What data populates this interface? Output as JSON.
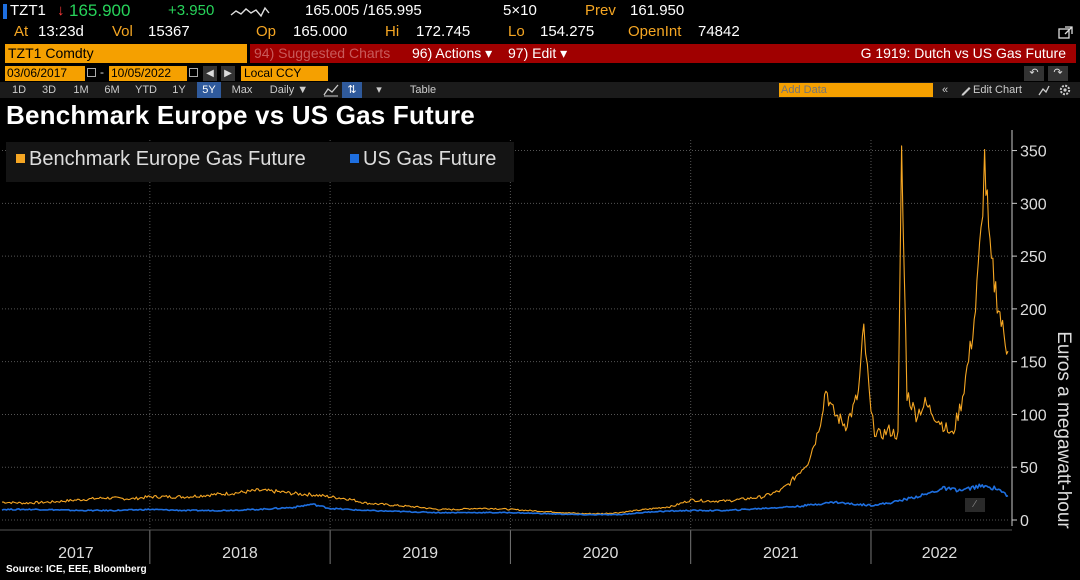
{
  "header": {
    "ticker": "TZT1",
    "arrow": "↓",
    "last": "165.900",
    "change": "+3.950",
    "bid_ask": "165.005 /165.995",
    "size": "5×10",
    "prev_label": "Prev",
    "prev": "161.950",
    "at_label": "At",
    "time": "13:23d",
    "vol_label": "Vol",
    "vol": "15367",
    "op_label": "Op",
    "op": "165.000",
    "hi_label": "Hi",
    "hi": "172.745",
    "lo_label": "Lo",
    "lo": "154.275",
    "oi_label": "OpenInt",
    "oi": "74842"
  },
  "toolbar": {
    "security": "TZT1 Comdty",
    "suggested": "94) Suggested Charts",
    "actions": "96) Actions ▾",
    "edit": "97) Edit ▾",
    "chart_name": "G 1919: Dutch vs US Gas Future",
    "start_date": "03/06/2017",
    "end_date": "10/05/2022",
    "currency": "Local CCY",
    "add_data_placeholder": "Add Data",
    "edit_chart": "Edit Chart",
    "table": "Table",
    "periods": [
      "1D",
      "3D",
      "1M",
      "6M",
      "YTD",
      "1Y",
      "5Y",
      "Max"
    ],
    "active_period": "5Y",
    "frequency": "Daily ▼"
  },
  "source": "Source: ICE, EEE, Bloomberg",
  "colors": {
    "europe": "#f5a623",
    "us": "#1e6fe0",
    "accent": "#f5a000",
    "bar_red": "#a00000"
  },
  "chart_data": {
    "type": "line",
    "title": "Benchmark Europe vs US Gas Future",
    "ylabel": "Euros a megawatt-hour",
    "ylim": [
      0,
      360
    ],
    "yticks": [
      0,
      50,
      100,
      150,
      200,
      250,
      300,
      350
    ],
    "xlim": [
      2017.18,
      2022.76
    ],
    "x_tick_labels": [
      "2017",
      "2018",
      "2019",
      "2020",
      "2021",
      "2022"
    ],
    "legend_position": "top-left",
    "grid": true,
    "series": [
      {
        "name": "Benchmark Europe Gas Future",
        "color": "#f5a623",
        "x": [
          2017.18,
          2017.3,
          2017.45,
          2017.6,
          2017.75,
          2017.9,
          2018.0,
          2018.1,
          2018.2,
          2018.35,
          2018.5,
          2018.6,
          2018.7,
          2018.8,
          2018.9,
          2019.0,
          2019.1,
          2019.2,
          2019.35,
          2019.5,
          2019.6,
          2019.7,
          2019.8,
          2019.9,
          2020.0,
          2020.1,
          2020.2,
          2020.3,
          2020.4,
          2020.5,
          2020.6,
          2020.7,
          2020.8,
          2020.9,
          2021.0,
          2021.1,
          2021.2,
          2021.3,
          2021.4,
          2021.5,
          2021.55,
          2021.6,
          2021.65,
          2021.7,
          2021.72,
          2021.75,
          2021.78,
          2021.8,
          2021.83,
          2021.86,
          2021.9,
          2021.93,
          2021.96,
          2021.98,
          2022.0,
          2022.02,
          2022.05,
          2022.1,
          2022.15,
          2022.17,
          2022.2,
          2022.25,
          2022.3,
          2022.35,
          2022.4,
          2022.45,
          2022.5,
          2022.55,
          2022.58,
          2022.61,
          2022.63,
          2022.66,
          2022.7,
          2022.73,
          2022.76
        ],
        "y": [
          17,
          16,
          17,
          19,
          21,
          20,
          22,
          22,
          22,
          24,
          26,
          28,
          27,
          25,
          24,
          22,
          20,
          16,
          14,
          12,
          10,
          10,
          11,
          11,
          10,
          9,
          8,
          7,
          6,
          6,
          7,
          9,
          11,
          13,
          19,
          18,
          18,
          20,
          22,
          28,
          35,
          45,
          55,
          80,
          95,
          125,
          105,
          100,
          95,
          90,
          105,
          120,
          180,
          140,
          100,
          85,
          80,
          85,
          80,
          340,
          120,
          100,
          110,
          100,
          90,
          80,
          110,
          160,
          200,
          270,
          340,
          250,
          210,
          180,
          160
        ]
      },
      {
        "name": "US Gas Future",
        "color": "#1e6fe0",
        "x": [
          2017.18,
          2017.4,
          2017.6,
          2017.8,
          2018.0,
          2018.2,
          2018.4,
          2018.6,
          2018.8,
          2018.9,
          2019.0,
          2019.2,
          2019.4,
          2019.6,
          2019.8,
          2020.0,
          2020.2,
          2020.4,
          2020.6,
          2020.8,
          2021.0,
          2021.2,
          2021.4,
          2021.6,
          2021.8,
          2021.9,
          2022.0,
          2022.1,
          2022.2,
          2022.3,
          2022.4,
          2022.5,
          2022.6,
          2022.7,
          2022.76
        ],
        "y": [
          10,
          10,
          9,
          9,
          10,
          9,
          9,
          10,
          12,
          15,
          11,
          9,
          8,
          7,
          7,
          7,
          6,
          5,
          5,
          8,
          9,
          9,
          11,
          13,
          17,
          15,
          14,
          16,
          20,
          24,
          30,
          28,
          32,
          30,
          23
        ]
      }
    ]
  }
}
